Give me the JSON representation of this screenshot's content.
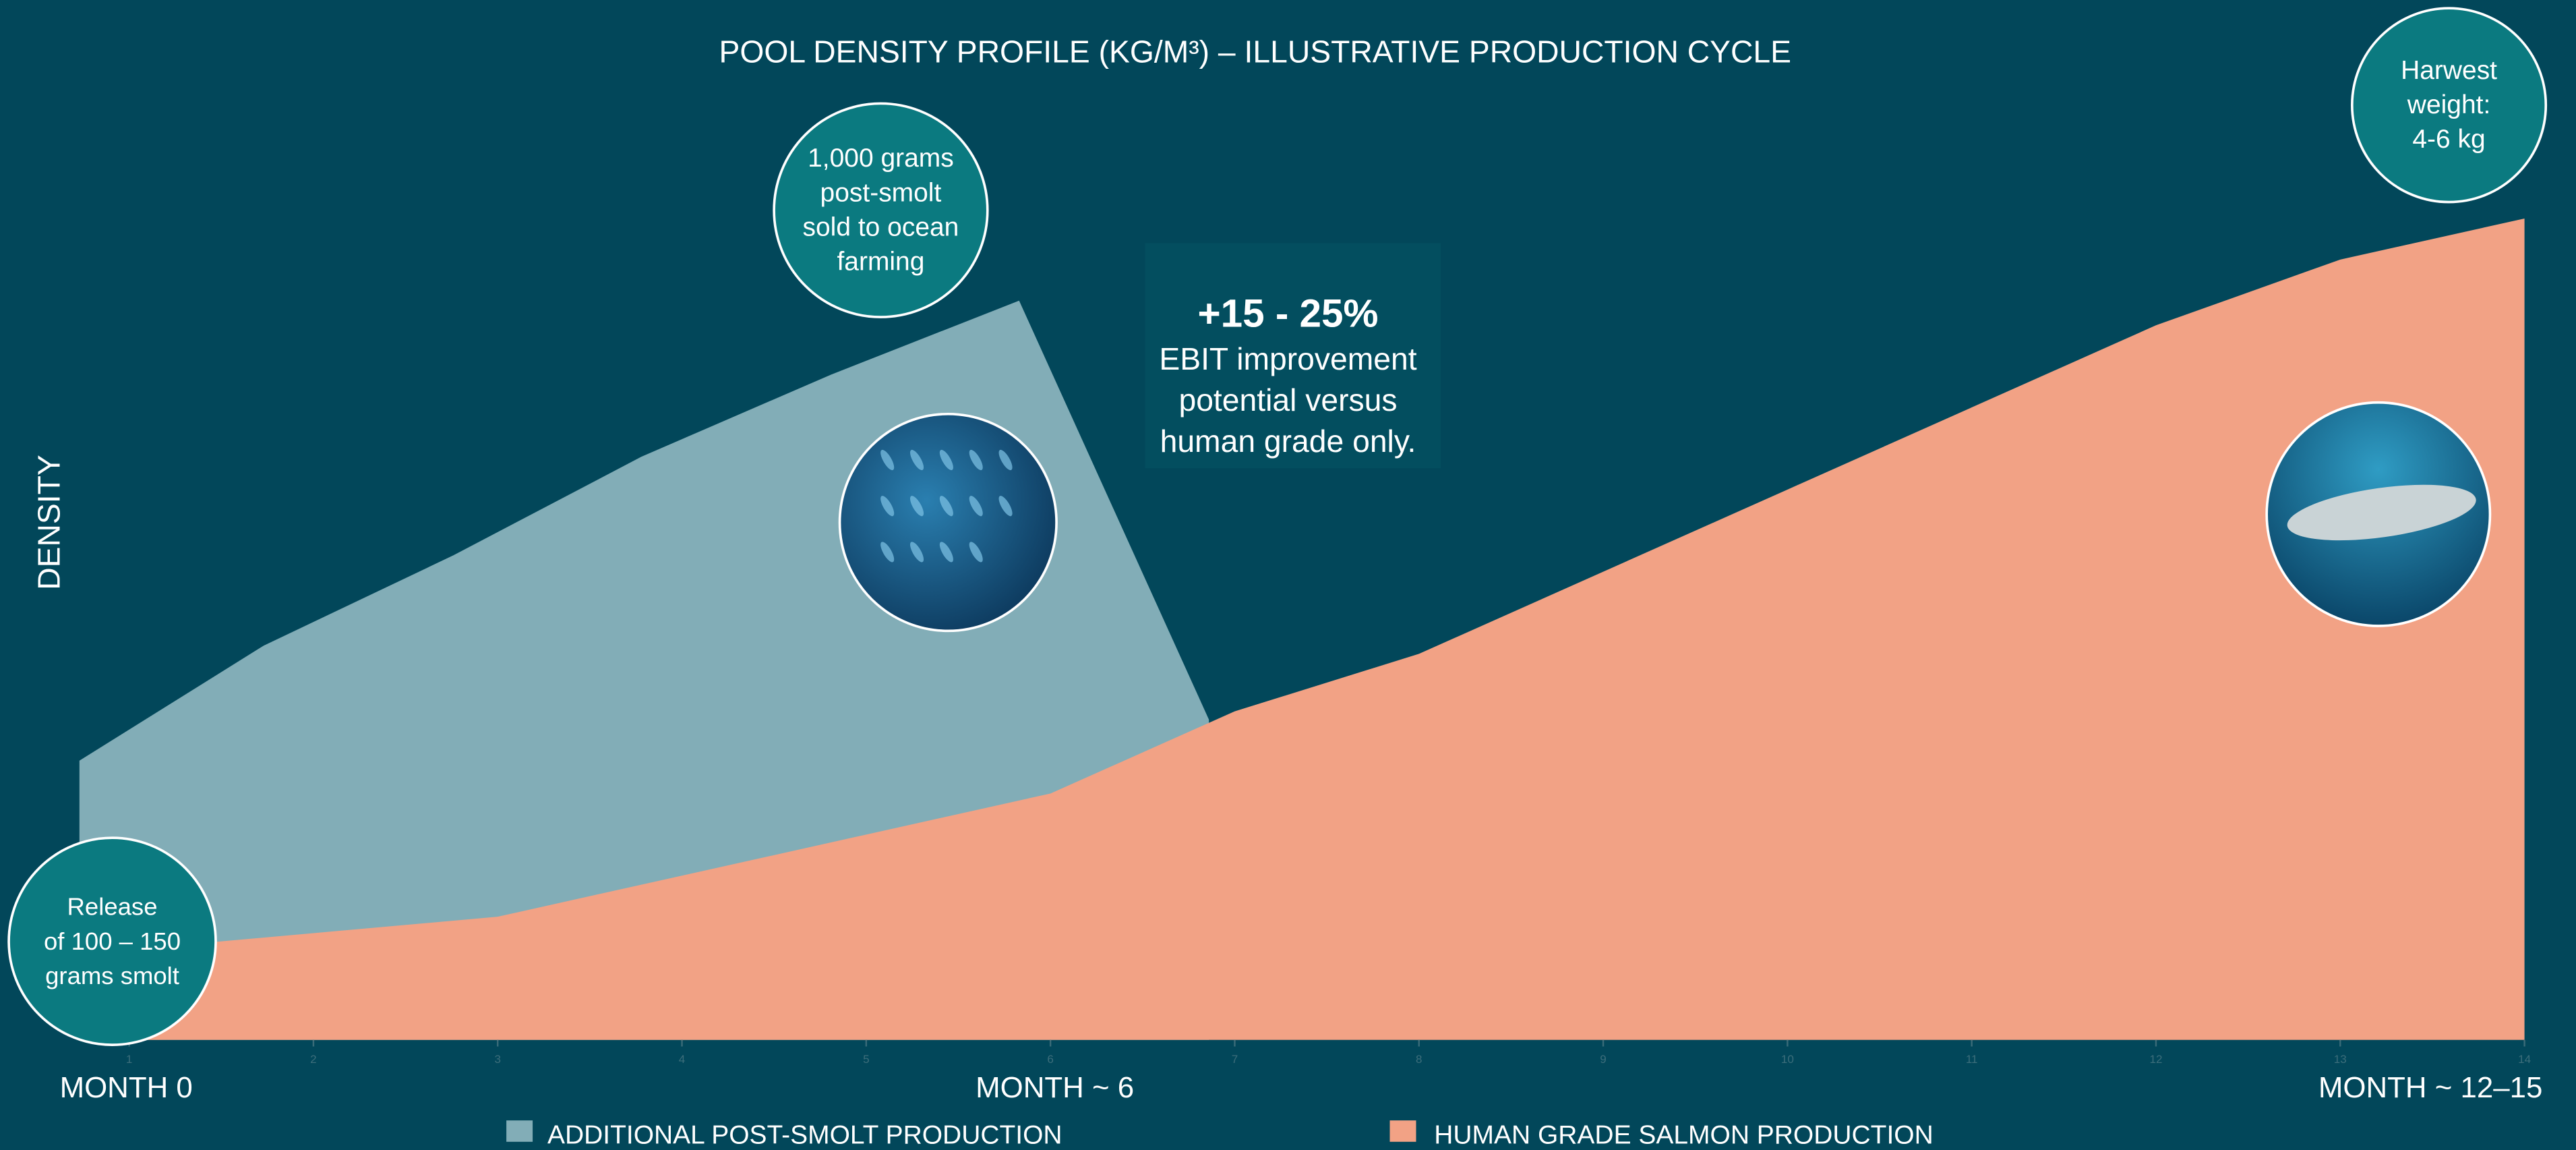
{
  "chart_data": {
    "type": "area",
    "title": "POOL DENSITY PROFILE (KG/M³) – ILLUSTRATIVE  PRODUCTION CYCLE",
    "y_label": "DENSITY",
    "x_labels": [
      "MONTH 0",
      "MONTH ~ 6",
      "MONTH ~ 12–15"
    ],
    "xlim": [
      0.73,
      14
    ],
    "ylim": [
      0,
      100
    ],
    "xticks": [
      1,
      2,
      3,
      4,
      5,
      6,
      7,
      8,
      9,
      10,
      11,
      12,
      13,
      14
    ],
    "series": [
      {
        "name": "ADDITIONAL POST-SMOLT PRODUCTION",
        "color": "#82adb7",
        "x": [
          0.73,
          1.73,
          2.76,
          3.78,
          4.81,
          5.83,
          6.86
        ],
        "values": [
          34,
          48,
          59,
          71,
          81,
          90,
          39
        ]
      },
      {
        "name": "HUMAN GRADE SALMON PRODUCTION",
        "color": "#f2a285",
        "x": [
          1,
          2,
          3,
          4,
          5,
          6,
          7,
          8,
          9,
          10,
          11,
          12,
          13,
          14
        ],
        "values": [
          11,
          13,
          15,
          20,
          25,
          30,
          40,
          47,
          57,
          67,
          77,
          87,
          95,
          100
        ]
      }
    ],
    "annotations": [
      {
        "lines": [
          "Release",
          "of 100 – 150",
          "grams smolt"
        ]
      },
      {
        "lines": [
          "1,000 grams",
          "post-smolt",
          "sold to ocean",
          "farming"
        ]
      },
      {
        "lines": [
          "Harwest",
          "weight:",
          "4-6 kg"
        ]
      }
    ],
    "callout": {
      "headline": "+15 - 25%",
      "lines": [
        "EBIT improvement",
        "potential versus",
        "human grade only."
      ]
    }
  }
}
